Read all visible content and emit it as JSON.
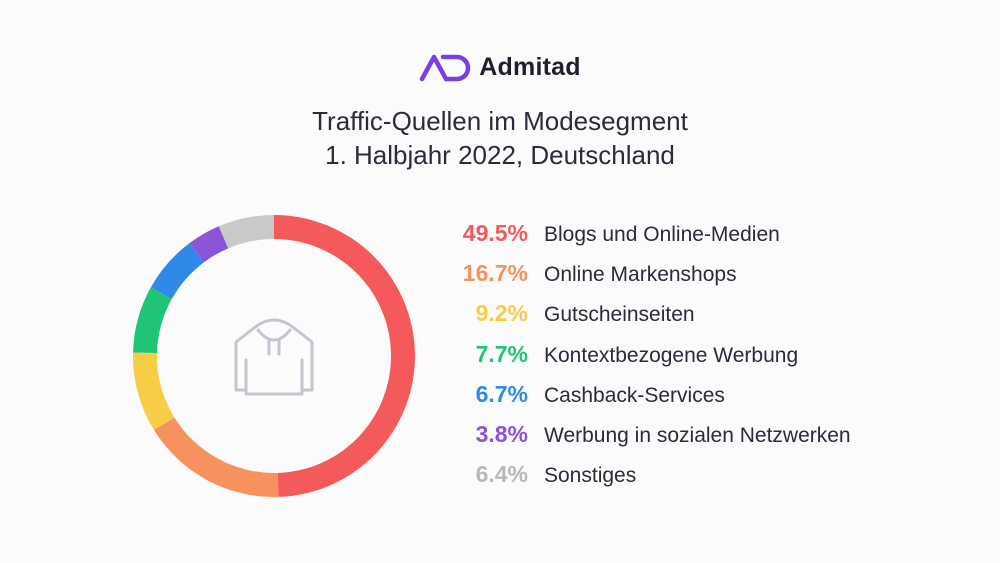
{
  "brand": {
    "name": "Admitad",
    "color": "#7b3fe4"
  },
  "chart_data": {
    "type": "pie",
    "title": "Traffic-Quellen im Modesegment",
    "subtitle": "1. Halbjahr 2022, Deutschland",
    "center_icon": "hoodie-icon",
    "slices": [
      {
        "label": "Blogs und Online-Medien",
        "pct_text": "49.5%",
        "value": 49.5,
        "color": "#f55a5a"
      },
      {
        "label": "Online Markenshops",
        "pct_text": "16.7%",
        "value": 16.7,
        "color": "#f7925f"
      },
      {
        "label": "Gutscheinseiten",
        "pct_text": "9.2%",
        "value": 9.2,
        "color": "#f6cd45"
      },
      {
        "label": "Kontextbezogene Werbung",
        "pct_text": "7.7%",
        "value": 7.7,
        "color": "#20c477"
      },
      {
        "label": "Cashback-Services",
        "pct_text": "6.7%",
        "value": 6.7,
        "color": "#2e8ae6"
      },
      {
        "label": "Werbung in sozialen Netzwerken",
        "pct_text": "3.8%",
        "value": 3.8,
        "color": "#8a55d8"
      },
      {
        "label": "Sonstiges",
        "pct_text": "6.4%",
        "value": 6.4,
        "color": "#c9c9c9"
      }
    ]
  }
}
